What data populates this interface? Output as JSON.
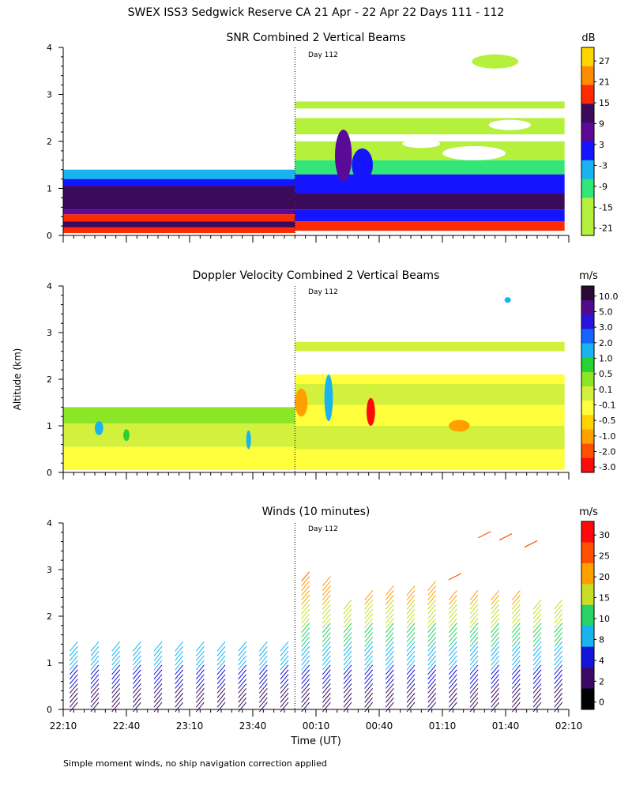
{
  "figure": {
    "title": "SWEX ISS3 Sedgwick Reserve CA  21 Apr - 22 Apr 22 Days 111 - 112",
    "y_axis_label": "Altitude (km)",
    "x_axis_label": "Time (UT)",
    "footnote": "Simple moment winds, no ship navigation correction applied",
    "day_marker": "Day 112"
  },
  "chart_data": [
    {
      "type": "heatmap",
      "title": "SNR Combined 2 Vertical Beams",
      "xlabel": "",
      "ylabel": "Altitude (km)",
      "ylim": [
        0,
        4
      ],
      "yticks": [
        "0",
        "1",
        "2",
        "3",
        "4"
      ],
      "xlim_minutes": [
        0,
        240
      ],
      "day_boundary_minutes": 110,
      "colorbar": {
        "unit": "dB",
        "labels": [
          "27",
          "21",
          "15",
          "9",
          "3",
          "-3",
          "-9",
          "-15",
          "-21"
        ],
        "colors": [
          "#ffd700",
          "#ff8c00",
          "#ff2a00",
          "#3c0a5a",
          "#5a0a96",
          "#1414ff",
          "#19b4f0",
          "#32e678",
          "#b4f03c",
          "#ffffff"
        ]
      },
      "regions": [
        {
          "from": 0,
          "to": 110,
          "bands": [
            [
              0.05,
              0.17,
              2
            ],
            [
              0.17,
              0.3,
              3
            ],
            [
              0.3,
              0.45,
              2
            ],
            [
              0.45,
              0.55,
              4
            ],
            [
              0.55,
              1.05,
              3
            ],
            [
              1.05,
              1.2,
              5
            ],
            [
              1.2,
              1.4,
              6
            ]
          ]
        },
        {
          "from": 110,
          "to": 238,
          "bands": [
            [
              0.1,
              0.3,
              2
            ],
            [
              0.3,
              0.55,
              5
            ],
            [
              0.55,
              0.9,
              3
            ],
            [
              0.9,
              1.3,
              5
            ],
            [
              1.3,
              1.6,
              7
            ],
            [
              1.6,
              2.0,
              8
            ],
            [
              2.0,
              2.15,
              9
            ],
            [
              2.15,
              2.5,
              8
            ],
            [
              2.5,
              2.7,
              9
            ],
            [
              2.7,
              2.85,
              8
            ]
          ]
        }
      ],
      "blobs": [
        {
          "x": 133,
          "y": 1.7,
          "w": 8,
          "h": 1.1,
          "c": 4
        },
        {
          "x": 142,
          "y": 1.5,
          "w": 10,
          "h": 0.7,
          "c": 5
        },
        {
          "x": 170,
          "y": 1.95,
          "w": 18,
          "h": 0.18,
          "c": 9
        },
        {
          "x": 195,
          "y": 1.75,
          "w": 30,
          "h": 0.3,
          "c": 9
        },
        {
          "x": 212,
          "y": 2.35,
          "w": 20,
          "h": 0.22,
          "c": 9
        },
        {
          "x": 205,
          "y": 3.7,
          "w": 22,
          "h": 0.3,
          "c": 8
        }
      ]
    },
    {
      "type": "heatmap",
      "title": "Doppler Velocity Combined 2 Vertical Beams",
      "xlabel": "",
      "ylabel": "Altitude (km)",
      "ylim": [
        0,
        4
      ],
      "yticks": [
        "0",
        "1",
        "2",
        "3",
        "4"
      ],
      "xlim_minutes": [
        0,
        240
      ],
      "day_boundary_minutes": 110,
      "colorbar": {
        "unit": "m/s",
        "labels": [
          "10.0",
          "5.0",
          "3.0",
          "2.0",
          "1.0",
          "0.5",
          "0.1",
          "-0.1",
          "-0.5",
          "-1.0",
          "-2.0",
          "-3.0"
        ],
        "colors": [
          "#280a32",
          "#500a8c",
          "#2814dc",
          "#1464ff",
          "#19b4f0",
          "#28d232",
          "#8ce628",
          "#d2f03c",
          "#ffff3c",
          "#ffd200",
          "#ffa000",
          "#ff5000",
          "#ff0a0a"
        ]
      },
      "regions": [
        {
          "from": 0,
          "to": 110,
          "bands": [
            [
              0.05,
              0.55,
              8
            ],
            [
              0.55,
              1.05,
              7
            ],
            [
              1.05,
              1.4,
              6
            ]
          ]
        },
        {
          "from": 110,
          "to": 238,
          "bands": [
            [
              0.05,
              0.5,
              8
            ],
            [
              0.5,
              1.0,
              7
            ],
            [
              1.0,
              1.45,
              8
            ],
            [
              1.45,
              1.9,
              7
            ],
            [
              1.9,
              2.1,
              8
            ],
            [
              2.6,
              2.8,
              7
            ]
          ]
        }
      ],
      "blobs": [
        {
          "x": 17,
          "y": 0.95,
          "w": 4,
          "h": 0.3,
          "c": 4
        },
        {
          "x": 30,
          "y": 0.8,
          "w": 3,
          "h": 0.25,
          "c": 5
        },
        {
          "x": 88,
          "y": 0.7,
          "w": 2,
          "h": 0.4,
          "c": 4
        },
        {
          "x": 113,
          "y": 1.5,
          "w": 6,
          "h": 0.6,
          "c": 10
        },
        {
          "x": 126,
          "y": 1.6,
          "w": 4,
          "h": 1.0,
          "c": 4
        },
        {
          "x": 146,
          "y": 1.3,
          "w": 4,
          "h": 0.6,
          "c": 12
        },
        {
          "x": 188,
          "y": 1.0,
          "w": 10,
          "h": 0.25,
          "c": 10
        },
        {
          "x": 211,
          "y": 3.7,
          "w": 3,
          "h": 0.12,
          "c": 4
        }
      ]
    },
    {
      "type": "scatter",
      "title": "Winds (10 minutes)",
      "xlabel": "Time (UT)",
      "ylabel": "Altitude (km)",
      "ylim": [
        0,
        4
      ],
      "yticks": [
        "0",
        "1",
        "2",
        "3",
        "4"
      ],
      "xlim_minutes": [
        0,
        240
      ],
      "xticks": [
        "22:10",
        "22:40",
        "23:10",
        "23:40",
        "00:10",
        "00:40",
        "01:10",
        "01:40",
        "02:10"
      ],
      "day_boundary_minutes": 110,
      "colorbar": {
        "unit": "m/s",
        "labels": [
          "30",
          "25",
          "20",
          "15",
          "10",
          "8",
          "4",
          "2",
          "0"
        ],
        "colors": [
          "#ff0a0a",
          "#ff5000",
          "#ffa000",
          "#c8dc28",
          "#28d264",
          "#19b4f0",
          "#1414dc",
          "#3c0a64",
          "#000000"
        ]
      },
      "profiles": [
        {
          "t": 5,
          "top": 1.4
        },
        {
          "t": 15,
          "top": 1.4
        },
        {
          "t": 25,
          "top": 1.4
        },
        {
          "t": 35,
          "top": 1.4
        },
        {
          "t": 45,
          "top": 1.4
        },
        {
          "t": 55,
          "top": 1.4
        },
        {
          "t": 65,
          "top": 1.4
        },
        {
          "t": 75,
          "top": 1.4
        },
        {
          "t": 85,
          "top": 1.4
        },
        {
          "t": 95,
          "top": 1.4
        },
        {
          "t": 105,
          "top": 1.4
        },
        {
          "t": 115,
          "top": 2.9
        },
        {
          "t": 125,
          "top": 2.8
        },
        {
          "t": 135,
          "top": 2.3
        },
        {
          "t": 145,
          "top": 2.5
        },
        {
          "t": 155,
          "top": 2.6
        },
        {
          "t": 165,
          "top": 2.6
        },
        {
          "t": 175,
          "top": 2.7
        },
        {
          "t": 185,
          "top": 2.5
        },
        {
          "t": 195,
          "top": 2.5
        },
        {
          "t": 205,
          "top": 2.5
        },
        {
          "t": 215,
          "top": 2.5
        },
        {
          "t": 225,
          "top": 2.3
        },
        {
          "t": 235,
          "top": 2.3
        }
      ],
      "upper_barbs": [
        {
          "t": 200,
          "y": 3.75
        },
        {
          "t": 210,
          "y": 3.7
        },
        {
          "t": 222,
          "y": 3.55
        },
        {
          "t": 186,
          "y": 2.85
        }
      ]
    }
  ]
}
